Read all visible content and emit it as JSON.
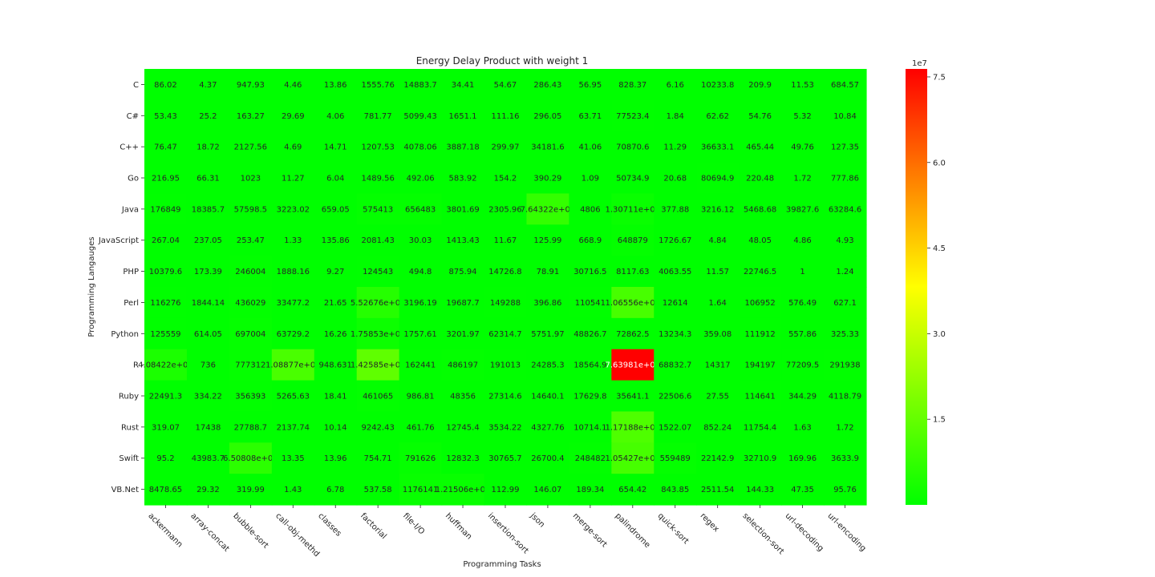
{
  "chart_data": {
    "type": "heatmap",
    "title": "Energy Delay Product with weight 1",
    "xlabel": "Programming Tasks",
    "ylabel": "Programming Langauges",
    "rows": [
      "C",
      "C#",
      "C++",
      "Go",
      "Java",
      "JavaScript",
      "PHP",
      "Perl",
      "Python",
      "R",
      "Ruby",
      "Rust",
      "Swift",
      "VB.Net"
    ],
    "columns": [
      "ackermann",
      "array-concat",
      "bubble-sort",
      "call-obj-methd",
      "classes",
      "factorial",
      "file-I/O",
      "huffman",
      "insertion-sort",
      "json",
      "merge-sort",
      "palindrome",
      "quick-sort",
      "regex",
      "selection-sort",
      "url-decoding",
      "url-encoding"
    ],
    "labels": [
      [
        "86.02",
        "4.37",
        "947.93",
        "4.46",
        "13.86",
        "1555.76",
        "14883.7",
        "34.41",
        "54.67",
        "286.43",
        "56.95",
        "828.37",
        "6.16",
        "10233.8",
        "209.9",
        "11.53",
        "684.57"
      ],
      [
        "53.43",
        "25.2",
        "163.27",
        "29.69",
        "4.06",
        "781.77",
        "5099.43",
        "1651.1",
        "111.16",
        "296.05",
        "63.71",
        "77523.4",
        "1.84",
        "62.62",
        "54.76",
        "5.32",
        "10.84"
      ],
      [
        "76.47",
        "18.72",
        "2127.56",
        "4.69",
        "14.71",
        "1207.53",
        "4078.06",
        "3887.18",
        "299.97",
        "34181.6",
        "41.06",
        "70870.6",
        "11.29",
        "36633.1",
        "465.44",
        "49.76",
        "127.35"
      ],
      [
        "216.95",
        "66.31",
        "1023",
        "11.27",
        "6.04",
        "1489.56",
        "492.06",
        "583.92",
        "154.2",
        "390.29",
        "1.09",
        "50734.9",
        "20.68",
        "80694.9",
        "220.48",
        "1.72",
        "777.86"
      ],
      [
        "176849",
        "18385.7",
        "57598.5",
        "3223.02",
        "659.05",
        "575413",
        "656483",
        "3801.69",
        "2305.96",
        "7.64322e+06",
        "4806",
        "1.30711e+06",
        "377.88",
        "3216.12",
        "5468.68",
        "39827.6",
        "63284.6"
      ],
      [
        "267.04",
        "237.05",
        "253.47",
        "1.33",
        "135.86",
        "2081.43",
        "30.03",
        "1413.43",
        "11.67",
        "125.99",
        "668.9",
        "648879",
        "1726.67",
        "4.84",
        "48.05",
        "4.86",
        "4.93"
      ],
      [
        "10379.6",
        "173.39",
        "246004",
        "1888.16",
        "9.27",
        "124543",
        "494.8",
        "875.94",
        "14726.8",
        "78.91",
        "30716.5",
        "8117.63",
        "4063.55",
        "11.57",
        "22746.5",
        "1",
        "1.24"
      ],
      [
        "116276",
        "1844.14",
        "436029",
        "33477.2",
        "21.65",
        "5.52676e+06",
        "3196.19",
        "19687.7",
        "149288",
        "396.86",
        "110541",
        "1.06556e+07",
        "12614",
        "1.64",
        "106952",
        "576.49",
        "627.1"
      ],
      [
        "125559",
        "614.05",
        "697004",
        "63729.2",
        "16.26",
        "1.75853e+06",
        "1757.61",
        "3201.97",
        "62314.7",
        "5751.97",
        "48826.7",
        "72862.5",
        "13234.3",
        "359.08",
        "111912",
        "557.86",
        "325.33"
      ],
      [
        "4.08422e+06",
        "736",
        "777312",
        "1.08877e+07",
        "948.631",
        "1.42585e+07",
        "162441",
        "486197",
        "191013",
        "24285.3",
        "18564.9",
        "7.63981e+07",
        "68832.7",
        "14317",
        "194197",
        "77209.5",
        "291938"
      ],
      [
        "22491.3",
        "334.22",
        "356393",
        "5265.63",
        "18.41",
        "461065",
        "986.81",
        "48356",
        "27314.6",
        "14640.1",
        "17629.8",
        "35641.1",
        "22506.6",
        "27.55",
        "114641",
        "344.29",
        "4118.79"
      ],
      [
        "319.07",
        "17438",
        "27788.7",
        "2137.74",
        "10.14",
        "9242.43",
        "461.76",
        "12745.4",
        "3534.22",
        "4327.76",
        "10714.1",
        "1.17188e+07",
        "1522.07",
        "852.24",
        "11754.4",
        "1.63",
        "1.72"
      ],
      [
        "95.2",
        "43983.7",
        "6.50808e+06",
        "13.35",
        "13.96",
        "754.71",
        "791626",
        "12832.3",
        "30765.7",
        "26700.4",
        "248482",
        "1.05427e+07",
        "559489",
        "22142.9",
        "32710.9",
        "169.96",
        "3633.9"
      ],
      [
        "8478.65",
        "29.32",
        "319.99",
        "1.43",
        "6.78",
        "537.58",
        "1176141",
        "1.21506e+06",
        "112.99",
        "146.07",
        "189.34",
        "654.42",
        "843.85",
        "2511.54",
        "144.33",
        "47.35",
        "95.76"
      ]
    ],
    "values": [
      [
        86.02,
        4.37,
        947.93,
        4.46,
        13.86,
        1555.76,
        14883.7,
        34.41,
        54.67,
        286.43,
        56.95,
        828.37,
        6.16,
        10233.8,
        209.9,
        11.53,
        684.57
      ],
      [
        53.43,
        25.2,
        163.27,
        29.69,
        4.06,
        781.77,
        5099.43,
        1651.1,
        111.16,
        296.05,
        63.71,
        77523.4,
        1.84,
        62.62,
        54.76,
        5.32,
        10.84
      ],
      [
        76.47,
        18.72,
        2127.56,
        4.69,
        14.71,
        1207.53,
        4078.06,
        3887.18,
        299.97,
        34181.6,
        41.06,
        70870.6,
        11.29,
        36633.1,
        465.44,
        49.76,
        127.35
      ],
      [
        216.95,
        66.31,
        1023,
        11.27,
        6.04,
        1489.56,
        492.06,
        583.92,
        154.2,
        390.29,
        1.09,
        50734.9,
        20.68,
        80694.9,
        220.48,
        1.72,
        777.86
      ],
      [
        176849,
        18385.7,
        57598.5,
        3223.02,
        659.05,
        575413,
        656483,
        3801.69,
        2305.96,
        7643220,
        4806,
        1307110,
        377.88,
        3216.12,
        5468.68,
        39827.6,
        63284.6
      ],
      [
        267.04,
        237.05,
        253.47,
        1.33,
        135.86,
        2081.43,
        30.03,
        1413.43,
        11.67,
        125.99,
        668.9,
        648879,
        1726.67,
        4.84,
        48.05,
        4.86,
        4.93
      ],
      [
        10379.6,
        173.39,
        246004,
        1888.16,
        9.27,
        124543,
        494.8,
        875.94,
        14726.8,
        78.91,
        30716.5,
        8117.63,
        4063.55,
        11.57,
        22746.5,
        1,
        1.24
      ],
      [
        116276,
        1844.14,
        436029,
        33477.2,
        21.65,
        5526760,
        3196.19,
        19687.7,
        149288,
        396.86,
        110541,
        10655600,
        12614,
        1.64,
        106952,
        576.49,
        627.1
      ],
      [
        125559,
        614.05,
        697004,
        63729.2,
        16.26,
        1758530,
        1757.61,
        3201.97,
        62314.7,
        5751.97,
        48826.7,
        72862.5,
        13234.3,
        359.08,
        111912,
        557.86,
        325.33
      ],
      [
        4084220,
        736,
        777312,
        10887700,
        948.631,
        14258500,
        162441,
        486197,
        191013,
        24285.3,
        18564.9,
        76398100,
        68832.7,
        14317,
        194197,
        77209.5,
        291938
      ],
      [
        22491.3,
        334.22,
        356393,
        5265.63,
        18.41,
        461065,
        986.81,
        48356,
        27314.6,
        14640.1,
        17629.8,
        35641.1,
        22506.6,
        27.55,
        114641,
        344.29,
        4118.79
      ],
      [
        319.07,
        17438,
        27788.7,
        2137.74,
        10.14,
        9242.43,
        461.76,
        12745.4,
        3534.22,
        4327.76,
        10714.1,
        11718800,
        1522.07,
        852.24,
        11754.4,
        1.63,
        1.72
      ],
      [
        95.2,
        43983.7,
        6508080,
        13.35,
        13.96,
        754.71,
        791626,
        12832.3,
        30765.7,
        26700.4,
        248482,
        10542700,
        559489,
        22142.9,
        32710.9,
        169.96,
        3633.9
      ],
      [
        8478.65,
        29.32,
        319.99,
        1.43,
        6.78,
        537.58,
        1176141,
        1215060,
        112.99,
        146.07,
        189.34,
        654.42,
        843.85,
        2511.54,
        144.33,
        47.35,
        95.76
      ]
    ],
    "colorbar": {
      "min": 1,
      "max": 76398100,
      "ticks": [
        15000000,
        30000000,
        45000000,
        60000000,
        75000000
      ],
      "tick_labels": [
        "1.5",
        "3.0",
        "4.5",
        "6.0",
        "7.5"
      ],
      "offset_label": "1e7"
    },
    "colors": {
      "low": "#00ff00",
      "mid": "#ffff00",
      "high": "#ff0000",
      "text": "#262626"
    },
    "grid": false
  }
}
